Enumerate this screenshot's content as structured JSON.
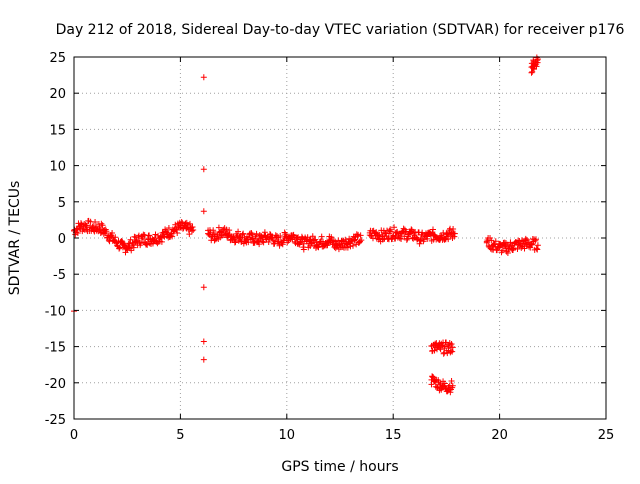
{
  "chart_data": {
    "type": "scatter",
    "title": "Day 212 of 2018, Sidereal Day-to-day VTEC variation (SDTVAR) for receiver p176",
    "xlabel": "GPS time / hours",
    "ylabel": "SDTVAR / TECUs",
    "xlim": [
      0,
      25
    ],
    "ylim": [
      -25,
      25
    ],
    "x_ticks": [
      "0",
      "5",
      "10",
      "15",
      "20",
      "25"
    ],
    "y_ticks": [
      "-25",
      "-20",
      "-15",
      "-10",
      "-5",
      "0",
      "5",
      "10",
      "15",
      "20",
      "25"
    ],
    "grid": true,
    "marker": "+",
    "series": [
      {
        "name": "SDTVAR",
        "color": "#ff0000",
        "outliers": {
          "x": [
            0.0,
            6.1,
            6.1,
            6.1,
            6.1,
            6.1,
            6.1
          ],
          "y": [
            -10.1,
            22.2,
            9.5,
            3.7,
            -6.8,
            -14.3,
            -16.8
          ]
        },
        "segments": [
          {
            "x": [
              0.0,
              0.3,
              0.6,
              0.9,
              1.2,
              1.4,
              1.7,
              2.0,
              2.3,
              2.6,
              2.9,
              3.2,
              3.5,
              3.8,
              4.1,
              4.4,
              4.7,
              5.0,
              5.3,
              5.6
            ],
            "y": [
              1.0,
              1.6,
              1.7,
              1.4,
              1.5,
              1.0,
              0.2,
              -0.6,
              -1.3,
              -1.1,
              -0.5,
              -0.1,
              -0.2,
              0.0,
              0.2,
              0.7,
              1.1,
              1.5,
              1.3,
              1.1
            ]
          },
          {
            "x": [
              6.3,
              6.6,
              6.9,
              7.2,
              7.5,
              7.8,
              8.1,
              8.4,
              8.7,
              9.0,
              9.3,
              9.6,
              9.9,
              10.2,
              10.5,
              10.8,
              11.1,
              11.4,
              11.7,
              12.0,
              12.3,
              12.6,
              12.9,
              13.2,
              13.5
            ],
            "y": [
              0.6,
              0.2,
              0.9,
              0.6,
              0.1,
              0.3,
              -0.2,
              0.0,
              -0.3,
              0.1,
              0.0,
              -0.5,
              0.0,
              0.3,
              0.0,
              -0.8,
              -0.4,
              -0.6,
              -0.5,
              -0.3,
              -1.0,
              -0.8,
              -0.5,
              -0.2,
              -0.3
            ]
          },
          {
            "x": [
              13.9,
              14.2,
              14.5,
              14.8,
              15.1,
              15.4,
              15.7,
              16.0,
              16.3,
              16.6,
              16.9,
              17.2,
              17.5,
              17.9
            ],
            "y": [
              0.4,
              0.6,
              0.2,
              0.6,
              0.7,
              0.6,
              0.5,
              0.4,
              -0.1,
              0.2,
              0.4,
              0.3,
              0.5,
              0.6
            ]
          },
          {
            "x": [
              16.8,
              17.0,
              17.2,
              17.4,
              17.6,
              17.8
            ],
            "y": [
              -14.9,
              -15.1,
              -15.2,
              -15.2,
              -15.2,
              -15.1
            ]
          },
          {
            "x": [
              16.8,
              17.0,
              17.2,
              17.4,
              17.6,
              17.8
            ],
            "y": [
              -19.6,
              -19.9,
              -20.3,
              -20.5,
              -20.6,
              -20.4
            ]
          },
          {
            "x": [
              19.4,
              19.7,
              20.0,
              20.3,
              20.6,
              20.9,
              21.2,
              21.5,
              21.8
            ],
            "y": [
              -0.5,
              -1.0,
              -1.3,
              -1.4,
              -1.1,
              -0.9,
              -0.8,
              -0.8,
              -1.0
            ]
          },
          {
            "x": [
              21.5,
              21.6,
              21.7,
              21.8
            ],
            "y": [
              23.6,
              23.9,
              24.3,
              24.7
            ]
          }
        ]
      }
    ]
  }
}
